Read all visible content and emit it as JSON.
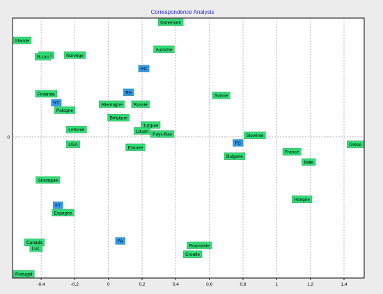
{
  "chart_data": {
    "type": "scatter",
    "title": "Correspondence Analysis",
    "xlim": [
      -0.57,
      1.52
    ],
    "ylim": [
      -0.95,
      0.8
    ],
    "x_ticks": [
      {
        "v": -0.4,
        "label": "-0,4"
      },
      {
        "v": -0.2,
        "label": "-0,2"
      },
      {
        "v": 0,
        "label": "0"
      },
      {
        "v": 0.2,
        "label": "0,2"
      },
      {
        "v": 0.4,
        "label": "0,4"
      },
      {
        "v": 0.6,
        "label": "0,6"
      },
      {
        "v": 0.8,
        "label": "0,8"
      },
      {
        "v": 1,
        "label": "1"
      },
      {
        "v": 1.2,
        "label": "1,2"
      },
      {
        "v": 1.4,
        "label": "1,4"
      }
    ],
    "y_ticks": [
      {
        "v": 0,
        "label": "0"
      }
    ],
    "grid": true,
    "colors": {
      "row": "#33dd77",
      "column": "#3399ee"
    },
    "series": [
      {
        "kind": "row",
        "points": [
          {
            "label": "Irlande",
            "x": -0.56,
            "y": 0.65
          },
          {
            "label": "Danemark",
            "x": 0.37,
            "y": 0.79
          },
          {
            "label": "Autriche",
            "x": 0.33,
            "y": 0.59
          },
          {
            "label": "R-Uni",
            "x": -0.37,
            "y": 0.55
          },
          {
            "label": "R-Uni",
            "x": -0.39,
            "y": 0.54
          },
          {
            "label": "Norvège",
            "x": -0.2,
            "y": 0.55
          },
          {
            "label": "Finlande",
            "x": -0.37,
            "y": 0.29
          },
          {
            "label": "Allemagne",
            "x": 0.02,
            "y": 0.22
          },
          {
            "label": "Russie",
            "x": 0.19,
            "y": 0.22
          },
          {
            "label": "Pologne",
            "x": -0.26,
            "y": 0.18
          },
          {
            "label": "Belgique",
            "x": 0.06,
            "y": 0.13
          },
          {
            "label": "Suisse",
            "x": 0.67,
            "y": 0.28
          },
          {
            "label": "Turquie",
            "x": 0.25,
            "y": 0.08
          },
          {
            "label": "Lettonie",
            "x": -0.19,
            "y": 0.05
          },
          {
            "label": "Lituan",
            "x": 0.2,
            "y": 0.04
          },
          {
            "label": "Pays-Bas",
            "x": 0.32,
            "y": 0.02
          },
          {
            "label": "Slovénie",
            "x": 0.87,
            "y": 0.01
          },
          {
            "label": "USA",
            "x": -0.21,
            "y": -0.05
          },
          {
            "label": "Estonie",
            "x": 0.16,
            "y": -0.07
          },
          {
            "label": "Bulgarie",
            "x": 0.75,
            "y": -0.13
          },
          {
            "label": "France",
            "x": 1.09,
            "y": -0.1
          },
          {
            "label": "Grèce",
            "x": 1.5,
            "y": -0.05
          },
          {
            "label": "Italie",
            "x": 1.19,
            "y": -0.17
          },
          {
            "label": "Slovaquie",
            "x": -0.36,
            "y": -0.29
          },
          {
            "label": "Hongrie",
            "x": 1.15,
            "y": -0.42
          },
          {
            "label": "Espagne",
            "x": -0.27,
            "y": -0.51
          },
          {
            "label": "Canada",
            "x": -0.44,
            "y": -0.71
          },
          {
            "label": "Lux.",
            "x": -0.43,
            "y": -0.75
          },
          {
            "label": "Roumanie",
            "x": 0.54,
            "y": -0.73
          },
          {
            "label": "Croatie",
            "x": 0.5,
            "y": -0.79
          },
          {
            "label": "Portugal",
            "x": -0.52,
            "y": -0.95
          }
        ]
      },
      {
        "kind": "column",
        "points": [
          {
            "label": "RC",
            "x": 0.21,
            "y": 0.46
          },
          {
            "label": "RA",
            "x": 0.12,
            "y": 0.3
          },
          {
            "label": "RT",
            "x": -0.31,
            "y": 0.23
          },
          {
            "label": "FC",
            "x": 0.77,
            "y": -0.04
          },
          {
            "label": "FT",
            "x": -0.3,
            "y": -0.46
          },
          {
            "label": "FA",
            "x": 0.07,
            "y": -0.7
          }
        ]
      }
    ]
  }
}
